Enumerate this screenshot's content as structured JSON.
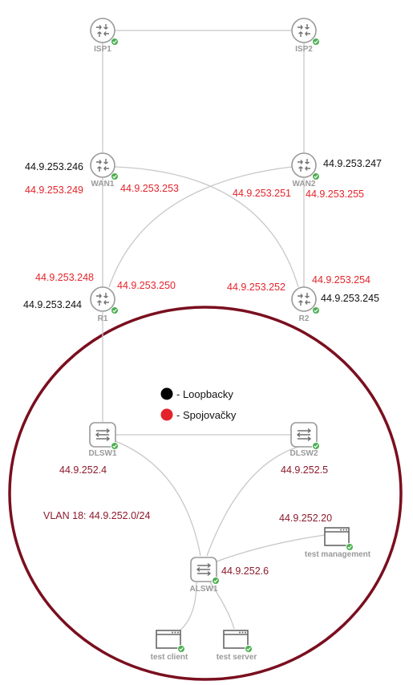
{
  "nodes": {
    "isp1": "ISP1",
    "isp2": "ISP2",
    "wan1": "WAN1",
    "wan2": "WAN2",
    "r1": "R1",
    "r2": "R2",
    "dlsw1": "DLSW1",
    "dlsw2": "DLSW2",
    "alsw1": "ALSW1",
    "test_management": "test management",
    "test_client": "test client",
    "test_server": "test server"
  },
  "ip_labels": {
    "wan1_loopback": "44.9.253.246",
    "wan2_loopback": "44.9.253.247",
    "r1_loopback": "44.9.253.244",
    "r2_loopback": "44.9.253.245",
    "wan1_link_left": "44.9.253.249",
    "wan1_link_right": "44.9.253.253",
    "wan2_link_left": "44.9.253.251",
    "wan2_link_right": "44.9.253.255",
    "r1_link_left": "44.9.253.248",
    "r1_link_right": "44.9.253.250",
    "r2_link_left": "44.9.253.252",
    "r2_link_right": "44.9.253.254",
    "dlsw1_ip": "44.9.252.4",
    "dlsw2_ip": "44.9.252.5",
    "alsw1_ip": "44.9.252.6",
    "test_management_ip": "44.9.252.20",
    "vlan": "VLAN 18: 44.9.252.0/24"
  },
  "legend": {
    "loopback": "- Loopbacky",
    "link": "- Spojovačky"
  },
  "colors": {
    "loopback_text": "#111111",
    "link_text": "#e3242b",
    "lan_text": "#8b1a2b",
    "lan_circle": "#7a0f1f",
    "status_ok": "#4caf50",
    "device_stroke": "#9a9a9a"
  },
  "icons": {
    "router": "router-icon",
    "switch": "switch-icon",
    "host": "host-icon",
    "status": "check-badge-icon"
  }
}
